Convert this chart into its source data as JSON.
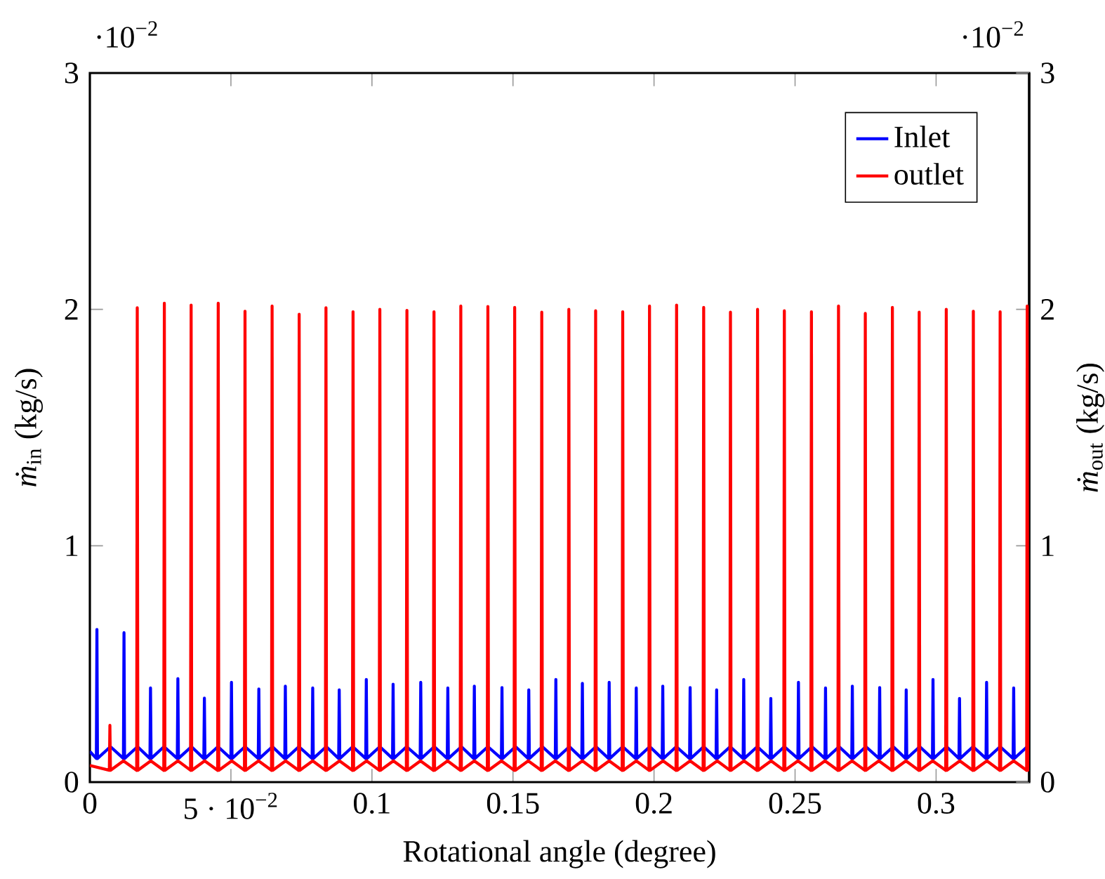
{
  "chart_data": {
    "type": "line",
    "xlabel": "Rotational angle (degree)",
    "ylabel": "*ṁ*$_{in}$ (kg/s)",
    "y2label": "*ṁ*$_{out}$ (kg/s)",
    "annotations": [
      "·10$^{−2}$",
      "·10$^{−2}$"
    ],
    "xlim": [
      0,
      0.333
    ],
    "ylim": [
      0,
      3
    ],
    "y2lim": [
      0,
      3
    ],
    "xticks": [
      0,
      {
        "value": 0.05,
        "label": "5 · 10$^{−2}$"
      },
      0.1,
      0.15,
      0.2,
      0.25,
      0.3
    ],
    "yticks": [
      0,
      1,
      2,
      3
    ],
    "y2ticks": [
      0,
      1,
      2,
      3
    ],
    "legend": "top right",
    "series": [
      {
        "name": "Inlet",
        "color": "#0000ff",
        "x": [
          0,
          0.0023,
          0.0025,
          0.0027,
          0.0073,
          0.0119,
          0.0121,
          0.0123,
          0.0169,
          0.0213,
          0.0215,
          0.0217,
          0.0263,
          0.031,
          0.0312,
          0.0314,
          0.036,
          0.0404,
          0.0406,
          0.0408,
          0.0454,
          0.05,
          0.0502,
          0.0504,
          0.055,
          0.0597,
          0.0599,
          0.0601,
          0.0647,
          0.0691,
          0.0693,
          0.0695,
          0.0741,
          0.0788,
          0.079,
          0.0792,
          0.0838,
          0.0882,
          0.0884,
          0.0886,
          0.0932,
          0.0978,
          0.098,
          0.0982,
          0.1028,
          0.1073,
          0.1075,
          0.1077,
          0.1123,
          0.1171,
          0.1173,
          0.1175,
          0.1221,
          0.1267,
          0.1269,
          0.1271,
          0.1317,
          0.1361,
          0.1363,
          0.1365,
          0.1411,
          0.1459,
          0.1461,
          0.1463,
          0.1509,
          0.1554,
          0.1556,
          0.1558,
          0.1604,
          0.165,
          0.1652,
          0.1654,
          0.17,
          0.1744,
          0.1746,
          0.1748,
          0.1794,
          0.1839,
          0.1841,
          0.1843,
          0.1889,
          0.1935,
          0.1937,
          0.1939,
          0.1985,
          0.2029,
          0.2031,
          0.2033,
          0.2079,
          0.2126,
          0.2128,
          0.213,
          0.2176,
          0.222,
          0.2222,
          0.2224,
          0.227,
          0.2316,
          0.2318,
          0.232,
          0.2366,
          0.2412,
          0.2414,
          0.2416,
          0.2462,
          0.251,
          0.2512,
          0.2514,
          0.256,
          0.2606,
          0.2608,
          0.261,
          0.2656,
          0.2701,
          0.2703,
          0.2705,
          0.2751,
          0.2798,
          0.28,
          0.2802,
          0.2848,
          0.2892,
          0.2894,
          0.2896,
          0.2942,
          0.2987,
          0.2989,
          0.2991,
          0.3037,
          0.3081,
          0.3083,
          0.3085,
          0.3131,
          0.3177,
          0.3179,
          0.3181,
          0.3227,
          0.3273,
          0.3275,
          0.3277,
          0.3323,
          0.333
        ],
        "values": [
          0.13,
          0.1,
          0.646,
          0.1,
          0.15,
          0.1,
          0.632,
          0.1,
          0.15,
          0.1,
          0.398,
          0.1,
          0.15,
          0.1,
          0.438,
          0.1,
          0.15,
          0.1,
          0.355,
          0.1,
          0.15,
          0.1,
          0.422,
          0.1,
          0.15,
          0.1,
          0.394,
          0.1,
          0.15,
          0.1,
          0.406,
          0.1,
          0.15,
          0.1,
          0.398,
          0.1,
          0.15,
          0.1,
          0.39,
          0.1,
          0.15,
          0.1,
          0.434,
          0.1,
          0.15,
          0.1,
          0.414,
          0.1,
          0.15,
          0.1,
          0.422,
          0.1,
          0.15,
          0.1,
          0.398,
          0.1,
          0.15,
          0.1,
          0.406,
          0.1,
          0.15,
          0.1,
          0.4,
          0.1,
          0.15,
          0.1,
          0.39,
          0.1,
          0.15,
          0.1,
          0.434,
          0.1,
          0.15,
          0.1,
          0.418,
          0.1,
          0.15,
          0.1,
          0.422,
          0.1,
          0.15,
          0.1,
          0.398,
          0.1,
          0.15,
          0.1,
          0.406,
          0.1,
          0.15,
          0.1,
          0.4,
          0.1,
          0.15,
          0.1,
          0.39,
          0.1,
          0.15,
          0.1,
          0.434,
          0.1,
          0.15,
          0.1,
          0.354,
          0.1,
          0.15,
          0.1,
          0.422,
          0.1,
          0.15,
          0.1,
          0.398,
          0.1,
          0.15,
          0.1,
          0.406,
          0.1,
          0.15,
          0.1,
          0.4,
          0.1,
          0.15,
          0.1,
          0.39,
          0.1,
          0.15,
          0.1,
          0.434,
          0.1,
          0.15,
          0.1,
          0.354,
          0.1,
          0.15,
          0.1,
          0.422,
          0.1,
          0.15,
          0.1,
          0.398,
          0.1,
          0.15,
          0.12
        ]
      },
      {
        "name": "outlet",
        "color": "#ff0000",
        "axis": "y2",
        "x": [
          0,
          0.0069,
          0.0071,
          0.0073,
          0.0119,
          0.0166,
          0.0168,
          0.017,
          0.0216,
          0.0262,
          0.0264,
          0.0266,
          0.0312,
          0.0357,
          0.0359,
          0.0361,
          0.0407,
          0.0453,
          0.0455,
          0.0457,
          0.0503,
          0.0548,
          0.055,
          0.0552,
          0.0598,
          0.0644,
          0.0646,
          0.0648,
          0.0694,
          0.074,
          0.0742,
          0.0744,
          0.079,
          0.0835,
          0.0837,
          0.0839,
          0.0885,
          0.0931,
          0.0933,
          0.0935,
          0.0981,
          0.1026,
          0.1028,
          0.103,
          0.1076,
          0.1122,
          0.1124,
          0.1126,
          0.1172,
          0.1218,
          0.122,
          0.1222,
          0.1268,
          0.1313,
          0.1315,
          0.1317,
          0.1363,
          0.1409,
          0.1411,
          0.1413,
          0.1459,
          0.1504,
          0.1506,
          0.1508,
          0.1554,
          0.16,
          0.1602,
          0.1604,
          0.165,
          0.1696,
          0.1698,
          0.17,
          0.1746,
          0.1791,
          0.1793,
          0.1795,
          0.1841,
          0.1887,
          0.1889,
          0.1891,
          0.1937,
          0.1982,
          0.1984,
          0.1986,
          0.2032,
          0.2078,
          0.208,
          0.2082,
          0.2128,
          0.2174,
          0.2176,
          0.2178,
          0.2224,
          0.2269,
          0.2271,
          0.2273,
          0.2319,
          0.2365,
          0.2367,
          0.2369,
          0.2415,
          0.246,
          0.2462,
          0.2464,
          0.251,
          0.2556,
          0.2558,
          0.256,
          0.2606,
          0.2652,
          0.2654,
          0.2656,
          0.2702,
          0.2747,
          0.2749,
          0.2751,
          0.2797,
          0.2843,
          0.2845,
          0.2847,
          0.2893,
          0.2938,
          0.294,
          0.2942,
          0.2988,
          0.3034,
          0.3036,
          0.3038,
          0.3084,
          0.313,
          0.3132,
          0.3134,
          0.318,
          0.3225,
          0.3227,
          0.3229,
          0.3275,
          0.3321,
          0.3323,
          0.3325,
          0.333
        ],
        "values": [
          0.07,
          0.05,
          0.24,
          0.05,
          0.09,
          0.05,
          2.007,
          0.05,
          0.09,
          0.05,
          2.026,
          0.05,
          0.09,
          0.05,
          2.018,
          0.05,
          0.09,
          0.05,
          2.026,
          0.05,
          0.09,
          0.05,
          1.992,
          0.05,
          0.09,
          0.05,
          2.014,
          0.05,
          0.09,
          0.05,
          1.979,
          0.05,
          0.09,
          0.05,
          2.007,
          0.05,
          0.09,
          0.05,
          1.99,
          0.05,
          0.09,
          0.05,
          2,
          0.05,
          0.09,
          0.05,
          1.996,
          0.05,
          0.09,
          0.05,
          1.99,
          0.05,
          0.09,
          0.05,
          2.014,
          0.05,
          0.09,
          0.05,
          2.012,
          0.05,
          0.09,
          0.05,
          2.008,
          0.05,
          0.09,
          0.05,
          1.988,
          0.05,
          0.09,
          0.05,
          2,
          0.05,
          0.09,
          0.05,
          1.994,
          0.05,
          0.09,
          0.05,
          1.99,
          0.05,
          0.09,
          0.05,
          2.014,
          0.05,
          0.09,
          0.05,
          2.018,
          0.05,
          0.09,
          0.05,
          2.008,
          0.05,
          0.09,
          0.05,
          1.988,
          0.05,
          0.09,
          0.05,
          2,
          0.05,
          0.09,
          0.05,
          1.994,
          0.05,
          0.09,
          0.05,
          1.99,
          0.05,
          0.09,
          0.05,
          2.014,
          0.05,
          0.09,
          0.05,
          1.983,
          0.05,
          0.09,
          0.05,
          2.008,
          0.05,
          0.09,
          0.05,
          1.988,
          0.05,
          0.09,
          0.05,
          2,
          0.05,
          0.09,
          0.05,
          1.992,
          0.05,
          0.09,
          0.05,
          1.99,
          0.05,
          0.09,
          0.05,
          2.014,
          0.05,
          0.06
        ]
      }
    ]
  }
}
